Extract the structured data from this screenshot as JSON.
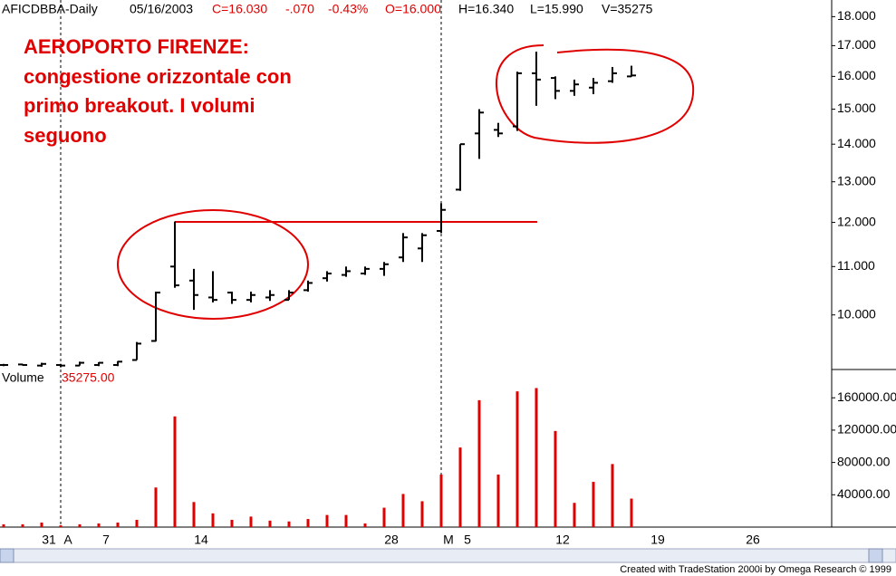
{
  "chart_data": [
    {
      "type": "ohlc",
      "header": [
        "AFICDBBA-Daily",
        "05/16/2003",
        "C=16.030",
        "-.070",
        "-0.43%",
        "O=16.000",
        "H=16.340",
        "L=15.990",
        "V=35275"
      ],
      "annotation": [
        "AEROPORTO FIRENZE:",
        "congestione orizzontale con",
        "primo breakout. I volumi",
        "seguono"
      ],
      "categories": [
        null,
        null,
        "31",
        "A",
        null,
        "7",
        null,
        null,
        null,
        null,
        "14",
        null,
        null,
        null,
        null,
        null,
        null,
        null,
        null,
        null,
        "28",
        null,
        null,
        "M",
        "5",
        null,
        null,
        null,
        null,
        "12",
        null,
        null,
        null,
        null,
        "19",
        null,
        null,
        null,
        null,
        "26"
      ],
      "open": [
        9.06,
        9.07,
        9.05,
        9.06,
        9.05,
        9.06,
        9.06,
        9.15,
        9.5,
        11.0,
        10.7,
        10.35,
        10.45,
        10.3,
        10.35,
        10.3,
        10.5,
        10.75,
        10.82,
        10.85,
        10.95,
        11.2,
        11.4,
        11.8,
        12.8,
        14.3,
        14.4,
        14.5,
        16.1,
        15.95,
        15.55,
        15.65,
        15.85,
        16.0,
        null,
        null,
        null,
        null,
        null,
        null
      ],
      "high": [
        9.08,
        9.08,
        9.1,
        9.08,
        9.12,
        9.11,
        9.13,
        9.48,
        10.47,
        12.02,
        10.95,
        10.9,
        10.47,
        10.47,
        10.5,
        10.5,
        10.7,
        10.9,
        11.0,
        11.0,
        11.1,
        11.75,
        11.75,
        12.46,
        14.0,
        15.0,
        14.6,
        16.15,
        16.8,
        16.0,
        15.9,
        15.95,
        16.3,
        16.34,
        null,
        null,
        null,
        null,
        null,
        null
      ],
      "low": [
        9.04,
        9.05,
        9.03,
        9.02,
        9.05,
        9.04,
        9.04,
        9.15,
        9.49,
        10.55,
        10.1,
        10.25,
        10.22,
        10.25,
        10.28,
        10.3,
        10.47,
        10.68,
        10.78,
        10.82,
        10.8,
        11.1,
        11.1,
        11.75,
        12.77,
        13.6,
        14.2,
        14.37,
        15.1,
        15.3,
        15.4,
        15.45,
        15.8,
        15.99,
        null,
        null,
        null,
        null,
        null,
        null
      ],
      "close": [
        9.06,
        9.06,
        9.08,
        9.05,
        9.1,
        9.1,
        9.12,
        9.45,
        10.45,
        10.6,
        10.4,
        10.3,
        10.3,
        10.4,
        10.4,
        10.45,
        10.65,
        10.85,
        10.9,
        10.95,
        11.05,
        11.65,
        11.7,
        12.3,
        14.0,
        14.9,
        14.3,
        16.1,
        15.9,
        15.55,
        15.75,
        15.8,
        16.1,
        16.03,
        null,
        null,
        null,
        null,
        null,
        null
      ],
      "color": "#000000",
      "log_scale": true,
      "ylim": [
        8.98,
        18.6
      ],
      "yticks": [
        {
          "value": 10,
          "label": "10.000"
        },
        {
          "value": 11,
          "label": "11.000"
        },
        {
          "value": 12,
          "label": "12.000"
        },
        {
          "value": 13,
          "label": "13.000"
        },
        {
          "value": 14,
          "label": "14.000"
        },
        {
          "value": 15,
          "label": "15.000"
        },
        {
          "value": 16,
          "label": "16.000"
        },
        {
          "value": 17,
          "label": "17.000"
        },
        {
          "value": 18,
          "label": "18.000"
        }
      ]
    },
    {
      "type": "bar",
      "title": "Volume",
      "value_label": "35275.00",
      "values": [
        3400,
        3400,
        5600,
        2200,
        3400,
        4500,
        5600,
        9000,
        49000,
        137000,
        31000,
        17000,
        9000,
        13000,
        8000,
        7000,
        10000,
        15000,
        15000,
        4500,
        24000,
        41000,
        32000,
        65000,
        98500,
        157000,
        65000,
        168000,
        172000,
        119000,
        30000,
        56000,
        78000,
        35275,
        null,
        null,
        null,
        null,
        null,
        null
      ],
      "color": "#e00000",
      "ylim": [
        0,
        195000
      ],
      "yticks": [
        {
          "value": 40000,
          "label": "40000.00"
        },
        {
          "value": 80000,
          "label": "80000.00"
        },
        {
          "value": 120000,
          "label": "120000.00"
        },
        {
          "value": 160000,
          "label": "160000.00"
        }
      ]
    }
  ],
  "footer": "Created with TradeStation 2000i by Omega Research © 1999"
}
